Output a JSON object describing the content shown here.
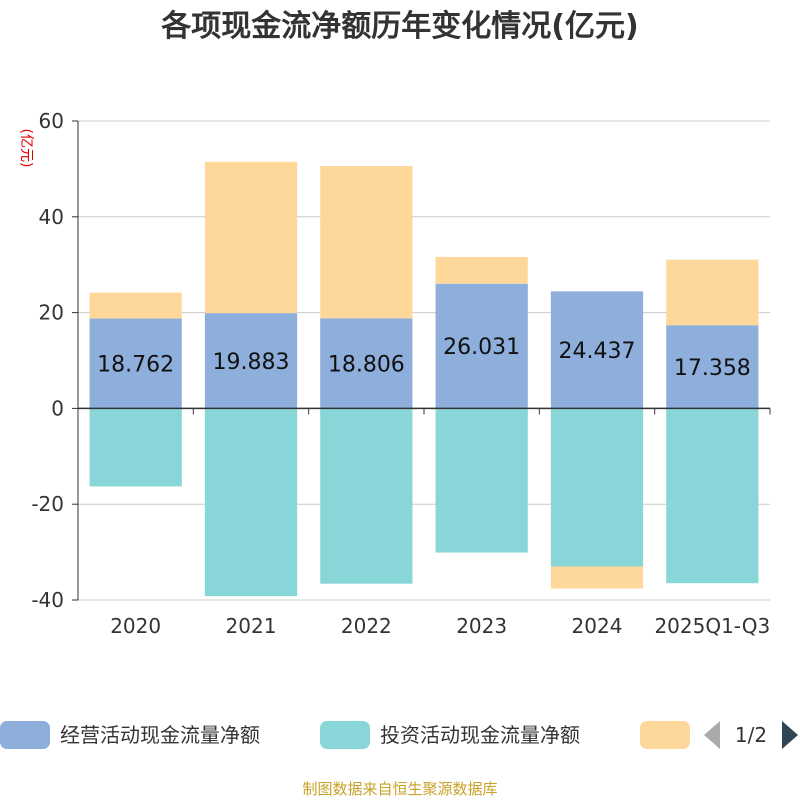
{
  "chart_data": {
    "type": "bar",
    "stacked": true,
    "title": "各项现金流净额历年变化情况(亿元)",
    "ylabel": "(亿元)",
    "ylim": [
      -40,
      60
    ],
    "yticks": [
      -40,
      -20,
      0,
      20,
      40,
      60
    ],
    "grid": true,
    "categories": [
      "2020",
      "2021",
      "2022",
      "2023",
      "2024",
      "2025Q1-Q3"
    ],
    "series": [
      {
        "name": "经营活动现金流量净额",
        "color": "#8eaedb",
        "values": [
          18.762,
          19.883,
          18.806,
          26.031,
          24.437,
          17.358
        ],
        "labels": [
          "18.762",
          "19.883",
          "18.806",
          "26.031",
          "24.437",
          "17.358"
        ]
      },
      {
        "name": "投资活动现金流量净额",
        "color": "#88d6d8",
        "values": [
          -16.3,
          -39.2,
          -36.6,
          -30.1,
          -33.0,
          -36.5
        ]
      },
      {
        "name": "",
        "color": "#fdd89a",
        "values": [
          5.4,
          31.6,
          31.8,
          5.6,
          -4.6,
          13.7
        ]
      }
    ],
    "legend": {
      "position": "bottom",
      "page": "1/2"
    },
    "source": "制图数据来自恒生聚源数据库"
  }
}
